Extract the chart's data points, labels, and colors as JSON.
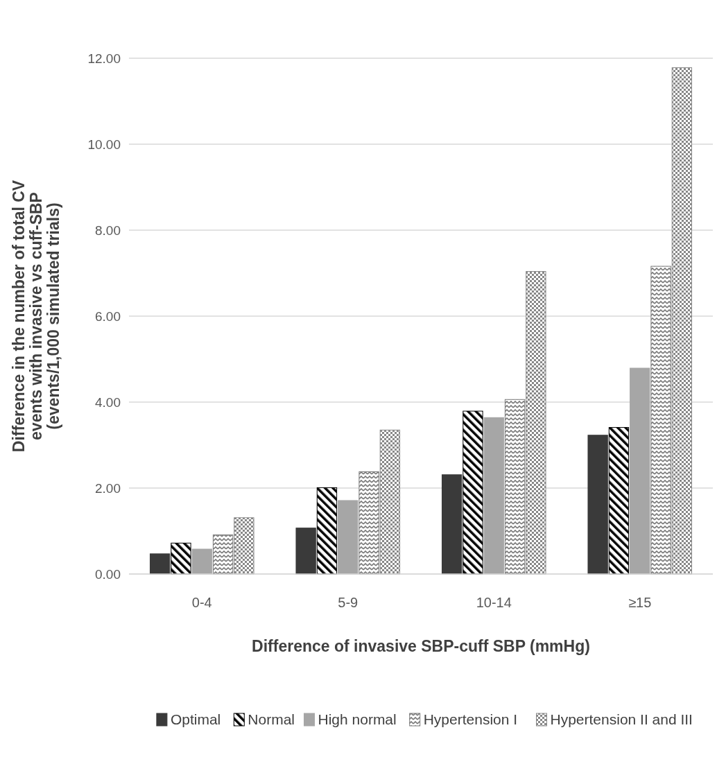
{
  "chart_data": {
    "type": "bar",
    "xlabel": "Difference of invasive SBP-cuff SBP (mmHg)",
    "ylabel": "Difference in the number of total CV events with invasive vs cuff-SBP (events/1,000 simulated trials)",
    "categories": [
      "0-4",
      "5-9",
      "10-14",
      "≥15"
    ],
    "series": [
      {
        "name": "Optimal",
        "color": "#3a3a3a",
        "values": [
          0.47,
          1.07,
          2.31,
          3.23
        ]
      },
      {
        "name": "Normal",
        "color": "#000000",
        "values": [
          0.72,
          2.01,
          3.79,
          3.41
        ]
      },
      {
        "name": "High normal",
        "color": "#a6a6a6",
        "values": [
          0.58,
          1.71,
          3.64,
          4.79
        ]
      },
      {
        "name": "Hypertension I",
        "color": "#777777",
        "values": [
          0.91,
          2.38,
          4.06,
          7.16
        ]
      },
      {
        "name": "Hypertension II and III",
        "color": "#888888",
        "values": [
          1.31,
          3.35,
          7.04,
          11.78
        ]
      }
    ],
    "ylim": [
      0,
      12
    ],
    "yticks": [
      {
        "value": 0,
        "label": "0.00"
      },
      {
        "value": 2,
        "label": "2.00"
      },
      {
        "value": 4,
        "label": "4.00"
      },
      {
        "value": 6,
        "label": "6.00"
      },
      {
        "value": 8,
        "label": "8.00"
      },
      {
        "value": 10,
        "label": "10.00"
      },
      {
        "value": 12,
        "label": "12.00"
      }
    ],
    "grid": "y",
    "legend": "bottom"
  }
}
